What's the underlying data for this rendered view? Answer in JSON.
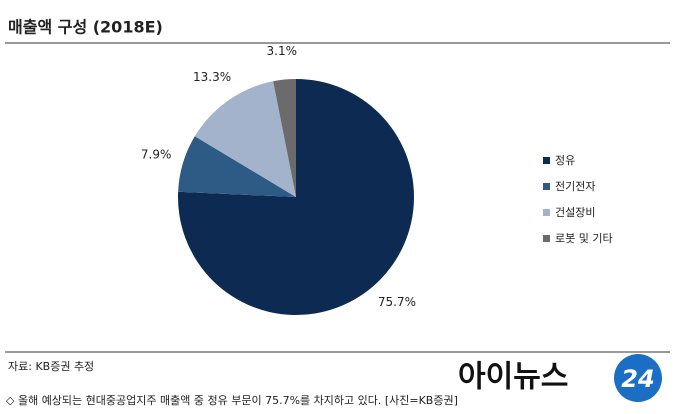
{
  "chart_data": {
    "type": "pie",
    "title": "매출액 구성 (2018E)",
    "categories": [
      "정유",
      "전기전자",
      "건설장비",
      "로봇 및 기타"
    ],
    "values": [
      75.7,
      7.9,
      13.3,
      3.1
    ],
    "value_labels": [
      "75.7%",
      "7.9%",
      "13.3%",
      "3.1%"
    ],
    "colors": [
      "#0d2b52",
      "#2e5b86",
      "#a3b3cc",
      "#6b6b6b"
    ],
    "legend": "right"
  },
  "source": "자료: KB증권 추정",
  "caption": "◇ 올해 예상되는 현대중공업지주 매출액 중 정유 부문이 75.7%를 차지하고 있다. [사진=KB증권]",
  "logo": {
    "text": "아이뉴스",
    "number": "24"
  }
}
